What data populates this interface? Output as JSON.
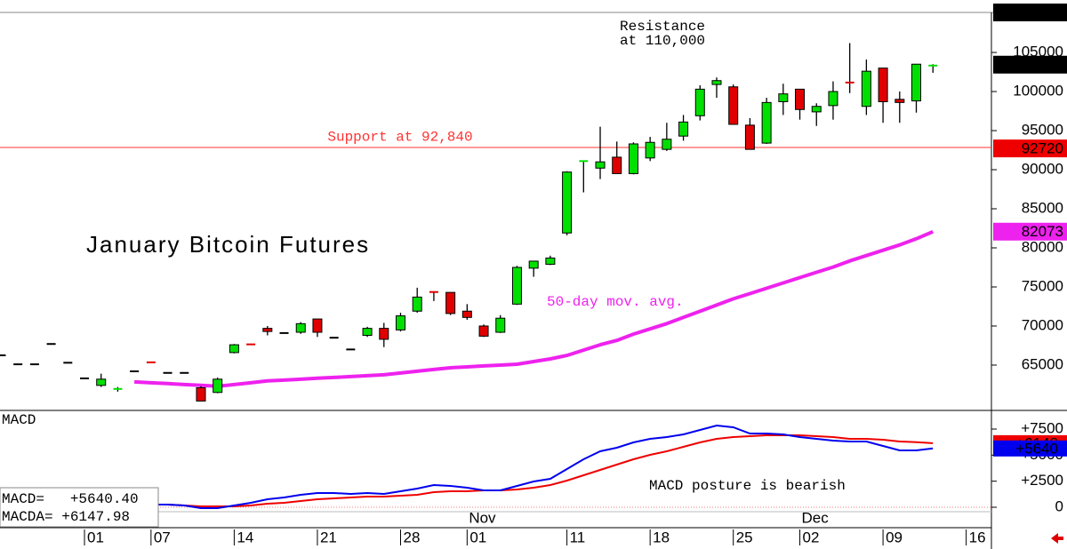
{
  "chart_data": [
    {
      "type": "candlestick",
      "title": "January Bitcoin Futures",
      "categories": [
        null,
        null,
        null,
        null,
        null,
        "01",
        null,
        null,
        null,
        "07",
        null,
        null,
        null,
        null,
        "14",
        null,
        null,
        null,
        null,
        "21",
        null,
        null,
        null,
        null,
        "28",
        null,
        null,
        null,
        "01",
        null,
        null,
        null,
        null,
        null,
        "11",
        null,
        null,
        null,
        null,
        "18",
        null,
        null,
        null,
        null,
        "25",
        null,
        null,
        null,
        "02",
        null,
        null,
        null,
        null,
        "09",
        null,
        null,
        null,
        null,
        "16"
      ],
      "months": [
        null,
        null,
        null,
        null,
        null,
        null,
        null,
        null,
        null,
        null,
        null,
        null,
        null,
        null,
        null,
        null,
        null,
        null,
        null,
        null,
        null,
        null,
        null,
        null,
        null,
        null,
        null,
        null,
        "Nov",
        null,
        null,
        null,
        null,
        null,
        null,
        null,
        null,
        null,
        null,
        null,
        null,
        null,
        null,
        null,
        null,
        null,
        null,
        null,
        "Dec",
        null,
        null,
        null,
        null,
        null,
        null,
        null,
        null,
        null,
        null
      ],
      "open": [
        66250,
        65100,
        65100,
        67700,
        65300,
        63300,
        62400,
        61900,
        64200,
        65400,
        64000,
        64000,
        62100,
        61500,
        66600,
        67700,
        69700,
        69100,
        69200,
        70900,
        68500,
        67000,
        68800,
        69700,
        69500,
        71900,
        74400,
        74300,
        71900,
        70000,
        69200,
        72800,
        77400,
        77900,
        81900,
        91000,
        90200,
        91600,
        89500,
        91500,
        92600,
        94300,
        96900,
        100900,
        100600,
        95700,
        93400,
        98700,
        100300,
        97400,
        98200,
        101300,
        98100,
        103000,
        99000,
        98800,
        103200,
        null,
        null
      ],
      "high": [
        66250,
        65100,
        65100,
        67700,
        65300,
        63300,
        63900,
        62200,
        64200,
        65400,
        64000,
        64000,
        62300,
        63400,
        67700,
        67700,
        70000,
        69100,
        70500,
        70900,
        68500,
        67000,
        69900,
        70400,
        71700,
        74900,
        74400,
        74300,
        72800,
        70200,
        71400,
        77700,
        78300,
        79000,
        89800,
        91200,
        95500,
        93600,
        93500,
        94200,
        96000,
        97000,
        100800,
        101800,
        100900,
        96600,
        99200,
        101000,
        100300,
        98500,
        101300,
        106200,
        104100,
        103000,
        100000,
        103500,
        103500,
        null,
        null
      ],
      "low": [
        66250,
        65100,
        65100,
        67700,
        65300,
        63300,
        62200,
        61600,
        64200,
        65300,
        64000,
        64000,
        60400,
        61400,
        66500,
        67600,
        68800,
        69100,
        69000,
        68600,
        68500,
        67000,
        68600,
        67300,
        69300,
        71700,
        73200,
        71400,
        70800,
        68600,
        69100,
        72700,
        76300,
        77800,
        81600,
        87100,
        88800,
        89500,
        89400,
        91100,
        92400,
        93700,
        96300,
        99200,
        95800,
        92600,
        93300,
        97000,
        96400,
        95600,
        96400,
        99800,
        97000,
        96000,
        96000,
        97300,
        102400,
        null,
        null
      ],
      "close": [
        66250,
        65100,
        65100,
        67700,
        65300,
        63300,
        63200,
        62000,
        64200,
        65300,
        64000,
        64000,
        60400,
        63200,
        67600,
        67600,
        69300,
        69100,
        70300,
        69200,
        68500,
        67000,
        69700,
        68300,
        71300,
        73700,
        74300,
        71600,
        71100,
        68700,
        71000,
        77500,
        78300,
        78700,
        89700,
        91200,
        91000,
        89500,
        93300,
        93500,
        93900,
        96100,
        100300,
        101400,
        95800,
        92600,
        98600,
        99700,
        97700,
        98100,
        100000,
        101000,
        102600,
        98700,
        98600,
        103500,
        103440,
        null,
        null
      ],
      "up_color": "#00e000",
      "down_color": "#e00000",
      "flat_color": "#000000",
      "series": [
        {
          "name": "50-day mov. avg.",
          "color": "#ee22ee",
          "values": [
            null,
            null,
            null,
            null,
            null,
            null,
            null,
            null,
            62850,
            62740,
            62630,
            62510,
            62400,
            62290,
            62510,
            62740,
            62970,
            63080,
            63190,
            63310,
            63420,
            63530,
            63640,
            63760,
            63980,
            64210,
            64440,
            64660,
            64770,
            64890,
            65000,
            65110,
            65450,
            65790,
            66240,
            66920,
            67600,
            68160,
            68960,
            69630,
            70310,
            71100,
            71890,
            72680,
            73480,
            74150,
            74830,
            75510,
            76190,
            76870,
            77540,
            78330,
            79010,
            79690,
            80370,
            81160,
            82073,
            null,
            null
          ]
        }
      ],
      "ylim": [
        59200,
        110120
      ],
      "yticks": [
        65000,
        70000,
        75000,
        80000,
        85000,
        90000,
        95000,
        100000,
        105000
      ],
      "price_labels": [
        {
          "value": 110120,
          "color": "#000000"
        },
        {
          "value": 103440,
          "color": "#000000"
        },
        {
          "value": 92720,
          "color": "#ee0000"
        },
        {
          "value": 82073,
          "color": "#ee22ee"
        }
      ],
      "hlines": [
        {
          "label": "Support at 92,840",
          "value": 92840,
          "color": "#ff3333"
        }
      ],
      "annotations": [
        [
          "Resistance",
          "at 110,000"
        ]
      ]
    },
    {
      "type": "line",
      "title": "MACD",
      "series": [
        {
          "color": "#ee0000",
          "values": [
            null,
            null,
            null,
            null,
            null,
            null,
            null,
            null,
            null,
            256,
            256,
            170,
            85,
            85,
            85,
            170,
            341,
            426,
            597,
            767,
            852,
            938,
            1023,
            1023,
            1108,
            1193,
            1449,
            1534,
            1534,
            1619,
            1619,
            1705,
            1875,
            2131,
            2557,
            3068,
            3580,
            4091,
            4602,
            5029,
            5369,
            5796,
            6222,
            6563,
            6733,
            6818,
            6904,
            6904,
            6904,
            6818,
            6733,
            6563,
            6563,
            6477,
            6307,
            6240,
            6147.98,
            null,
            null
          ]
        },
        {
          "color": "#0000ee",
          "values": [
            null,
            null,
            null,
            null,
            null,
            null,
            null,
            null,
            null,
            256,
            256,
            170,
            -85,
            -85,
            170,
            426,
            767,
            938,
            1193,
            1364,
            1364,
            1278,
            1364,
            1278,
            1534,
            1790,
            2131,
            2046,
            1875,
            1619,
            1619,
            2046,
            2472,
            2727,
            3665,
            4602,
            5369,
            5710,
            6222,
            6563,
            6733,
            6989,
            7415,
            7841,
            7671,
            7074,
            7074,
            6989,
            6733,
            6563,
            6392,
            6307,
            6307,
            5881,
            5455,
            5455,
            5640.4,
            null,
            null
          ]
        }
      ],
      "ylim": [
        -340,
        9290
      ],
      "yticks": [
        {
          "value": 7500,
          "label": "+7500"
        },
        {
          "value": 5000,
          "label": "+5000"
        },
        {
          "value": 2500,
          "label": "+2500"
        },
        0
      ],
      "value_boxes": [
        {
          "value": 6148,
          "label": "+6148",
          "color": "#ee0000"
        },
        {
          "value": 5640,
          "label": "+5640",
          "color": "#0000ee"
        }
      ],
      "readouts": [
        "MACD=   +5640.40",
        "MACDA= +6147.98"
      ],
      "annotation": "MACD posture is bearish"
    }
  ]
}
